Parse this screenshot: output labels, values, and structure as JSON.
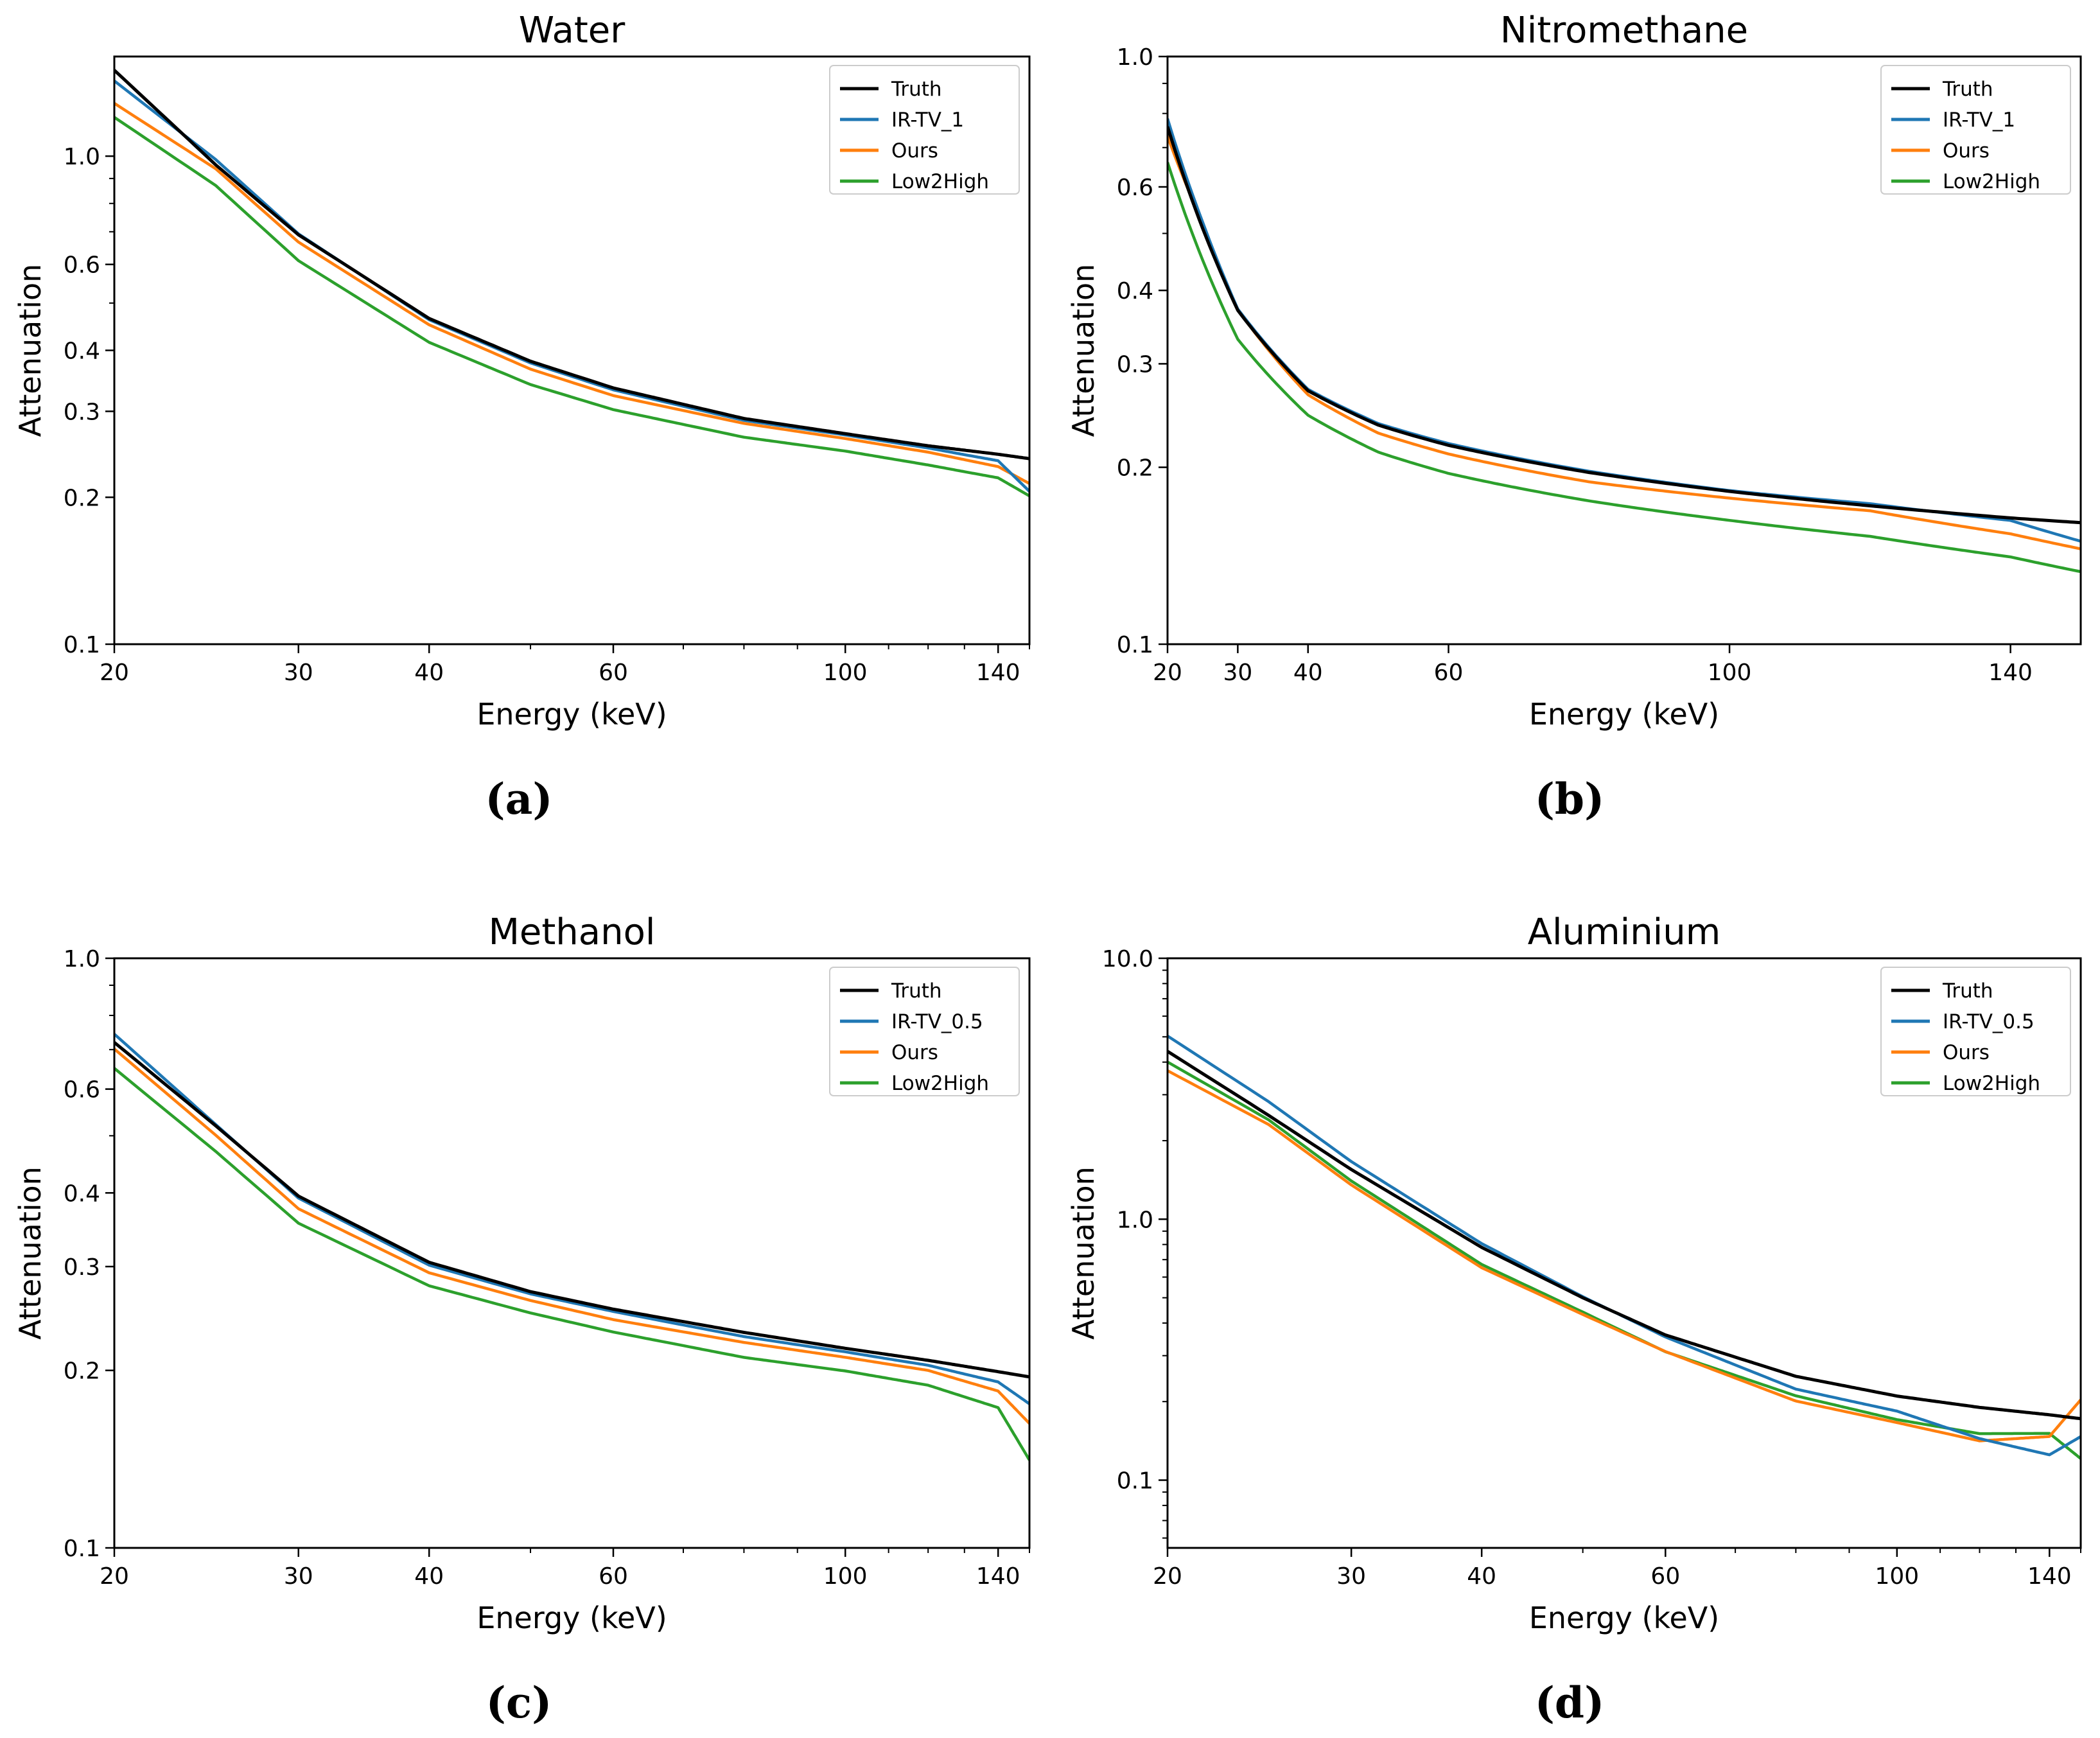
{
  "colors": {
    "Truth": "#000000",
    "IR-TV": "#1f77b4",
    "Ours": "#ff7f0e",
    "Low2High": "#2ca02c"
  },
  "chart_data": [
    {
      "type": "line",
      "title": "Water",
      "caption": "(a)",
      "xlabel": "Energy (keV)",
      "ylabel": "Attenuation",
      "xscale": "log",
      "yscale": "log",
      "xlim": [
        20,
        150
      ],
      "ylim": [
        0.1,
        1.6
      ],
      "xticks": [
        20,
        30,
        40,
        60,
        100,
        140
      ],
      "yticks": [
        0.1,
        0.2,
        0.3,
        0.4,
        0.6,
        1.0
      ],
      "ytick_labels": [
        "0.1",
        "0.2",
        "0.3",
        "0.4",
        "0.6",
        "1.0"
      ],
      "legend_position": "top-right",
      "x": [
        20,
        25,
        30,
        40,
        50,
        60,
        80,
        100,
        120,
        140,
        150
      ],
      "series": [
        {
          "name": "Truth",
          "color_key": "Truth",
          "noise": 0,
          "values": [
            1.5,
            0.96,
            0.69,
            0.465,
            0.38,
            0.335,
            0.29,
            0.27,
            0.255,
            0.245,
            0.24
          ]
        },
        {
          "name": "IR-TV_1",
          "color_key": "IR-TV",
          "noise": 0.035,
          "values": [
            1.42,
            0.98,
            0.69,
            0.46,
            0.375,
            0.33,
            0.285,
            0.265,
            0.248,
            0.232,
            0.2
          ]
        },
        {
          "name": "Ours",
          "color_key": "Ours",
          "noise": 0.02,
          "values": [
            1.28,
            0.94,
            0.665,
            0.45,
            0.365,
            0.322,
            0.282,
            0.262,
            0.245,
            0.228,
            0.21
          ]
        },
        {
          "name": "Low2High",
          "color_key": "Low2High",
          "noise": 0.008,
          "values": [
            1.2,
            0.87,
            0.61,
            0.415,
            0.34,
            0.302,
            0.265,
            0.248,
            0.232,
            0.218,
            0.2
          ]
        }
      ]
    },
    {
      "type": "line",
      "title": "Nitromethane",
      "caption": "(b)",
      "xlabel": "Energy (keV)",
      "ylabel": "Attenuation",
      "xscale": "linear",
      "yscale": "log",
      "xlim": [
        20,
        150
      ],
      "ylim": [
        0.1,
        1.0
      ],
      "xticks": [
        20,
        30,
        40,
        60,
        100,
        140
      ],
      "yticks": [
        0.1,
        0.2,
        0.3,
        0.4,
        0.6,
        1.0
      ],
      "ytick_labels": [
        "0.1",
        "0.2",
        "0.3",
        "0.4",
        "0.6",
        "1.0"
      ],
      "legend_position": "top-right",
      "x": [
        20,
        25,
        30,
        40,
        50,
        60,
        80,
        100,
        120,
        140,
        150
      ],
      "series": [
        {
          "name": "Truth",
          "color_key": "Truth",
          "noise": 0,
          "values": [
            0.76,
            0.51,
            0.37,
            0.27,
            0.236,
            0.218,
            0.196,
            0.182,
            0.172,
            0.164,
            0.161
          ]
        },
        {
          "name": "IR-TV_1",
          "color_key": "IR-TV",
          "noise": 0.04,
          "values": [
            0.78,
            0.52,
            0.37,
            0.27,
            0.236,
            0.218,
            0.195,
            0.18,
            0.17,
            0.158,
            0.145
          ]
        },
        {
          "name": "Ours",
          "color_key": "Ours",
          "noise": 0.02,
          "values": [
            0.73,
            0.52,
            0.37,
            0.265,
            0.228,
            0.21,
            0.188,
            0.176,
            0.167,
            0.152,
            0.143
          ]
        },
        {
          "name": "Low2High",
          "color_key": "Low2High",
          "noise": 0.008,
          "values": [
            0.66,
            0.45,
            0.33,
            0.245,
            0.212,
            0.195,
            0.175,
            0.162,
            0.152,
            0.14,
            0.132
          ]
        }
      ]
    },
    {
      "type": "line",
      "title": "Methanol",
      "caption": "(c)",
      "xlabel": "Energy (keV)",
      "ylabel": "Attenuation",
      "xscale": "log",
      "yscale": "log",
      "xlim": [
        20,
        150
      ],
      "ylim": [
        0.1,
        1.0
      ],
      "xticks": [
        20,
        30,
        40,
        60,
        100,
        140
      ],
      "yticks": [
        0.1,
        0.2,
        0.3,
        0.4,
        0.6,
        1.0
      ],
      "ytick_labels": [
        "0.1",
        "0.2",
        "0.3",
        "0.4",
        "0.6",
        "1.0"
      ],
      "legend_position": "top-right",
      "x": [
        20,
        25,
        30,
        40,
        50,
        60,
        80,
        100,
        120,
        140,
        150
      ],
      "series": [
        {
          "name": "Truth",
          "color_key": "Truth",
          "noise": 0,
          "values": [
            0.72,
            0.52,
            0.395,
            0.305,
            0.272,
            0.254,
            0.232,
            0.218,
            0.208,
            0.199,
            0.195
          ]
        },
        {
          "name": "IR-TV_0.5",
          "color_key": "IR-TV",
          "noise": 0.04,
          "values": [
            0.74,
            0.52,
            0.39,
            0.3,
            0.268,
            0.25,
            0.226,
            0.212,
            0.2,
            0.186,
            0.17
          ]
        },
        {
          "name": "Ours",
          "color_key": "Ours",
          "noise": 0.02,
          "values": [
            0.7,
            0.5,
            0.375,
            0.292,
            0.262,
            0.243,
            0.222,
            0.209,
            0.198,
            0.182,
            0.16
          ]
        },
        {
          "name": "Low2High",
          "color_key": "Low2High",
          "noise": 0.008,
          "values": [
            0.65,
            0.47,
            0.355,
            0.278,
            0.25,
            0.232,
            0.21,
            0.199,
            0.188,
            0.172,
            0.14
          ]
        }
      ]
    },
    {
      "type": "line",
      "title": "Aluminium",
      "caption": "(d)",
      "xlabel": "Energy (keV)",
      "ylabel": "Attenuation",
      "xscale": "log",
      "yscale": "log",
      "xlim": [
        20,
        150
      ],
      "ylim": [
        0.055,
        10.0
      ],
      "xticks": [
        20,
        30,
        40,
        60,
        100,
        140
      ],
      "yticks": [
        0.1,
        1.0,
        10.0
      ],
      "ytick_labels": [
        "0.1",
        "1.0",
        "10.0"
      ],
      "legend_position": "top-right",
      "x": [
        20,
        25,
        30,
        40,
        50,
        60,
        80,
        100,
        120,
        140,
        150
      ],
      "series": [
        {
          "name": "Truth",
          "color_key": "Truth",
          "noise": 0,
          "values": [
            4.4,
            2.5,
            1.55,
            0.78,
            0.5,
            0.36,
            0.25,
            0.21,
            0.19,
            0.178,
            0.172
          ]
        },
        {
          "name": "IR-TV_0.5",
          "color_key": "IR-TV",
          "noise": 0.06,
          "values": [
            5.0,
            2.8,
            1.65,
            0.8,
            0.5,
            0.35,
            0.22,
            0.18,
            0.14,
            0.12,
            0.14
          ]
        },
        {
          "name": "Ours",
          "color_key": "Ours",
          "noise": 0.02,
          "values": [
            3.7,
            2.3,
            1.35,
            0.65,
            0.43,
            0.31,
            0.2,
            0.165,
            0.14,
            0.145,
            0.2
          ]
        },
        {
          "name": "Low2High",
          "color_key": "Low2High",
          "noise": 0.01,
          "values": [
            4.0,
            2.4,
            1.4,
            0.67,
            0.44,
            0.31,
            0.21,
            0.17,
            0.15,
            0.15,
            0.12
          ]
        }
      ]
    }
  ]
}
